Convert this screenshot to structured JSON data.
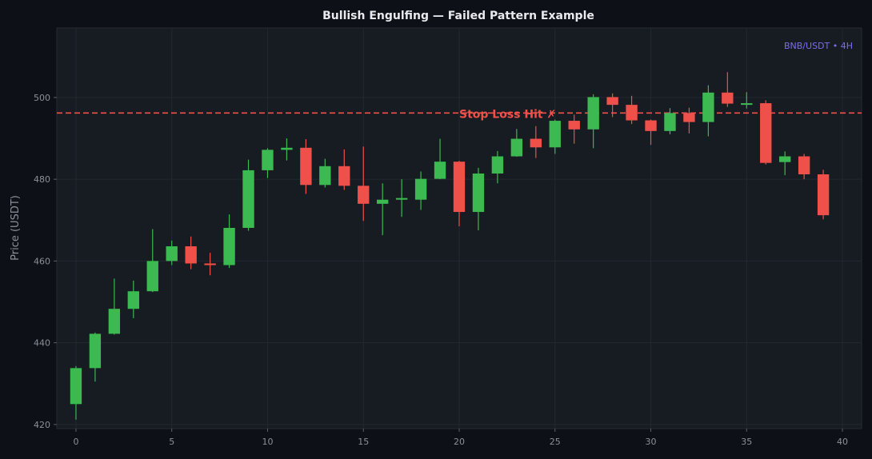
{
  "chart_data": {
    "type": "candlestick",
    "title": "Bullish Engulfing — Failed Pattern Example",
    "ylabel": "Price (USDT)",
    "xlabel": "",
    "corner_label": "BNB/USDT • 4H",
    "xlim": [
      -1,
      41
    ],
    "ylim": [
      419,
      517
    ],
    "x_ticks": [
      0,
      5,
      10,
      15,
      20,
      25,
      30,
      35,
      40
    ],
    "y_ticks": [
      420,
      440,
      460,
      480,
      500
    ],
    "grid": true,
    "colors": {
      "up": "#3cb950",
      "down": "#f0504a",
      "stop_line": "#f0504a",
      "background": "#171b22",
      "page": "#0d1017"
    },
    "stop_loss": {
      "price": 496.2,
      "label": "Stop Loss Hit ✗",
      "label_x": 20
    },
    "candles": [
      {
        "x": 0,
        "open": 425.0,
        "high": 434.3,
        "low": 421.2,
        "close": 433.8
      },
      {
        "x": 1,
        "open": 433.8,
        "high": 442.5,
        "low": 430.5,
        "close": 442.2
      },
      {
        "x": 2,
        "open": 442.2,
        "high": 455.7,
        "low": 442.0,
        "close": 448.3
      },
      {
        "x": 3,
        "open": 448.3,
        "high": 455.2,
        "low": 446.0,
        "close": 452.6
      },
      {
        "x": 4,
        "open": 452.6,
        "high": 467.8,
        "low": 452.4,
        "close": 460.0
      },
      {
        "x": 5,
        "open": 460.0,
        "high": 465.0,
        "low": 459.0,
        "close": 463.6
      },
      {
        "x": 6,
        "open": 463.6,
        "high": 466.0,
        "low": 458.0,
        "close": 459.4
      },
      {
        "x": 7,
        "open": 459.4,
        "high": 462.0,
        "low": 456.5,
        "close": 459.0
      },
      {
        "x": 8,
        "open": 459.0,
        "high": 471.4,
        "low": 458.3,
        "close": 468.1
      },
      {
        "x": 9,
        "open": 468.1,
        "high": 484.8,
        "low": 467.4,
        "close": 482.2
      },
      {
        "x": 10,
        "open": 482.2,
        "high": 487.6,
        "low": 480.3,
        "close": 487.2
      },
      {
        "x": 11,
        "open": 487.2,
        "high": 490.0,
        "low": 484.6,
        "close": 487.7
      },
      {
        "x": 12,
        "open": 487.7,
        "high": 489.8,
        "low": 476.4,
        "close": 478.6
      },
      {
        "x": 13,
        "open": 478.6,
        "high": 485.0,
        "low": 478.0,
        "close": 483.2
      },
      {
        "x": 14,
        "open": 483.2,
        "high": 487.3,
        "low": 477.4,
        "close": 478.4
      },
      {
        "x": 15,
        "open": 478.4,
        "high": 488.0,
        "low": 469.8,
        "close": 474.0
      },
      {
        "x": 16,
        "open": 474.0,
        "high": 479.0,
        "low": 466.3,
        "close": 475.0
      },
      {
        "x": 17,
        "open": 475.0,
        "high": 480.0,
        "low": 470.8,
        "close": 475.4
      },
      {
        "x": 18,
        "open": 475.0,
        "high": 481.9,
        "low": 472.5,
        "close": 480.1
      },
      {
        "x": 19,
        "open": 480.1,
        "high": 489.9,
        "low": 480.0,
        "close": 484.3
      },
      {
        "x": 20,
        "open": 484.3,
        "high": 484.5,
        "low": 468.5,
        "close": 472.0
      },
      {
        "x": 21,
        "open": 472.0,
        "high": 482.8,
        "low": 467.5,
        "close": 481.4
      },
      {
        "x": 22,
        "open": 481.4,
        "high": 486.9,
        "low": 479.0,
        "close": 485.6
      },
      {
        "x": 23,
        "open": 485.6,
        "high": 492.3,
        "low": 485.5,
        "close": 489.9
      },
      {
        "x": 24,
        "open": 489.9,
        "high": 493.0,
        "low": 485.2,
        "close": 487.8
      },
      {
        "x": 25,
        "open": 487.8,
        "high": 494.6,
        "low": 486.2,
        "close": 494.3
      },
      {
        "x": 26,
        "open": 494.3,
        "high": 495.8,
        "low": 488.7,
        "close": 492.2
      },
      {
        "x": 27,
        "open": 492.2,
        "high": 500.8,
        "low": 487.6,
        "close": 500.1
      },
      {
        "x": 28,
        "open": 500.1,
        "high": 501.0,
        "low": 495.2,
        "close": 498.2
      },
      {
        "x": 29,
        "open": 498.2,
        "high": 500.4,
        "low": 493.5,
        "close": 494.4
      },
      {
        "x": 30,
        "open": 494.4,
        "high": 494.6,
        "low": 488.4,
        "close": 491.8
      },
      {
        "x": 31,
        "open": 491.8,
        "high": 497.4,
        "low": 491.0,
        "close": 496.2
      },
      {
        "x": 32,
        "open": 496.2,
        "high": 497.5,
        "low": 491.2,
        "close": 494.0
      },
      {
        "x": 33,
        "open": 494.0,
        "high": 503.0,
        "low": 490.5,
        "close": 501.2
      },
      {
        "x": 34,
        "open": 501.2,
        "high": 506.2,
        "low": 497.7,
        "close": 498.5
      },
      {
        "x": 35,
        "open": 498.2,
        "high": 501.3,
        "low": 497.3,
        "close": 498.6
      },
      {
        "x": 36,
        "open": 498.6,
        "high": 499.3,
        "low": 483.6,
        "close": 484.0
      },
      {
        "x": 37,
        "open": 484.2,
        "high": 486.8,
        "low": 481.0,
        "close": 485.6
      },
      {
        "x": 38,
        "open": 485.6,
        "high": 486.2,
        "low": 480.0,
        "close": 481.2
      },
      {
        "x": 39,
        "open": 481.2,
        "high": 482.3,
        "low": 470.2,
        "close": 471.2
      }
    ]
  }
}
